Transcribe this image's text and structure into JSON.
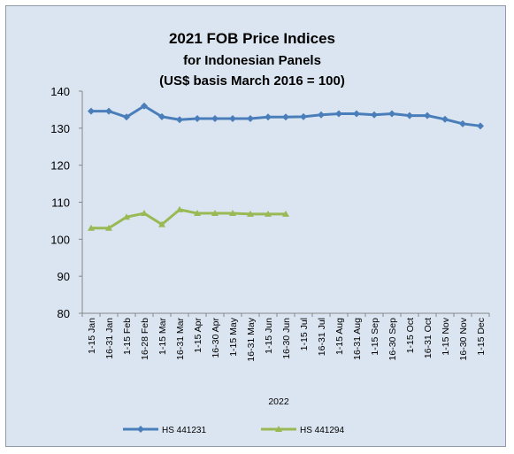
{
  "chart_data": {
    "type": "line",
    "title_lines": [
      "2021 FOB Price Indices",
      "for Indonesian Panels",
      "(US$ basis March 2016 = 100)"
    ],
    "xlabel": "2022",
    "ylabel": "",
    "ylim": [
      80,
      140
    ],
    "yticks": [
      80,
      90,
      100,
      110,
      120,
      130,
      140
    ],
    "grid": false,
    "legend_position": "bottom",
    "categories": [
      "1-15 Jan",
      "16-31 Jan",
      "1-15 Feb",
      "16-28 Feb",
      "1-15 Mar",
      "16-31 Mar",
      "1-15 Apr",
      "16-30 Apr",
      "1-15 May",
      "16-31 May",
      "1-15 Jun",
      "16-30 Jun",
      "1-15 Jul",
      "16-31 Jul",
      "1-15 Aug",
      "16-31 Aug",
      "1-15 Sep",
      "16-30 Sep",
      "1-15 Oct",
      "16-31 Oct",
      "1-15 Nov",
      "16-30 Nov",
      "1-15 Dec"
    ],
    "series": [
      {
        "name": "HS 441231",
        "color": "#4a7ebb",
        "marker": "diamond",
        "values": [
          134.6,
          134.6,
          133.0,
          136.0,
          133.1,
          132.3,
          132.6,
          132.6,
          132.6,
          132.6,
          133.0,
          133.0,
          133.1,
          133.6,
          133.9,
          133.9,
          133.6,
          133.9,
          133.4,
          133.4,
          132.4,
          131.2,
          130.6
        ]
      },
      {
        "name": "HS 441294",
        "color": "#98b954",
        "marker": "triangle",
        "values": [
          103.0,
          103.0,
          106.0,
          107.0,
          104.0,
          108.0,
          107.0,
          107.0,
          107.0,
          106.8,
          106.8,
          106.8,
          null,
          null,
          null,
          null,
          null,
          null,
          null,
          null,
          null,
          null,
          null
        ]
      }
    ]
  }
}
